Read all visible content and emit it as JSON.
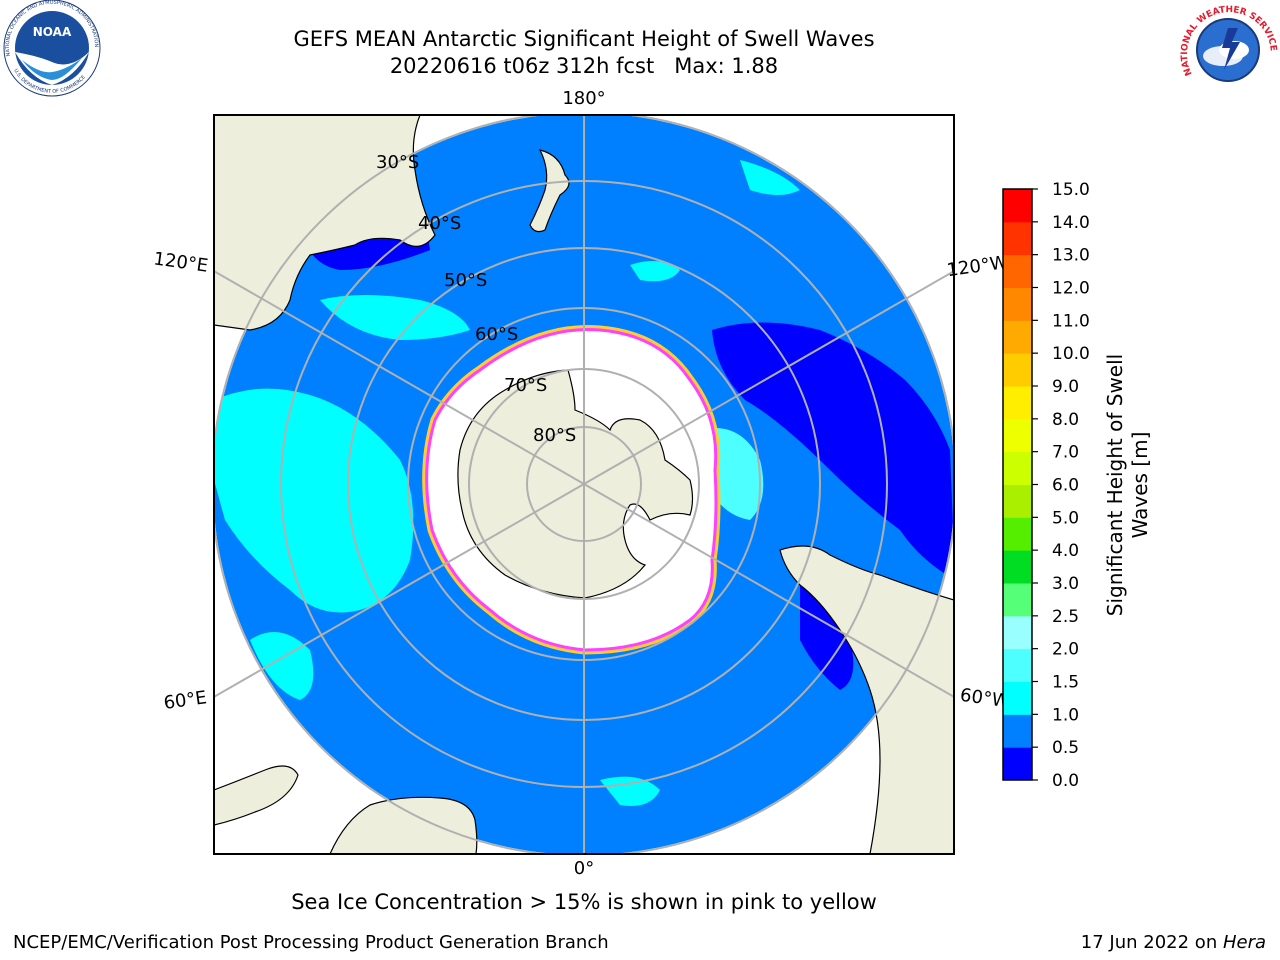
{
  "title": {
    "line1": "GEFS MEAN Antarctic Significant Height of Swell Waves",
    "line2": "20220616 t06z 312h fcst   Max: 1.88"
  },
  "logos": {
    "noaa_text": "NOAA",
    "noaa_ring_text": "NATIONAL OCEANIC AND ATMOSPHERIC ADMINISTRATION",
    "noaa_ring_text_bottom": "U.S. DEPARTMENT OF COMMERCE",
    "nws_ring_text": "NATIONAL WEATHER SERVICE"
  },
  "map": {
    "projection": "south-polar-stereographic",
    "longitude_labels": {
      "top": "180°",
      "bottom": "0°",
      "left_upper": "120°E",
      "right_upper": "120°W",
      "left_lower": "60°E",
      "right_lower": "60°W"
    },
    "latitude_labels": [
      "30°S",
      "40°S",
      "50°S",
      "60°S",
      "70°S",
      "80°S"
    ],
    "colors": {
      "ocean": "#0080ff",
      "land": "#eeeedc",
      "ice": "#ffffff",
      "calm": "#0000ff",
      "swell_light": "#00ffff",
      "swell_pale": "#4dffff",
      "grid": "#b0b0b0",
      "ice_edge_pink": "#ff40ff",
      "ice_edge_yellow": "#ffcc33"
    }
  },
  "colorbar": {
    "label": "Significant Height of Swell Waves [m]",
    "ticks": [
      "0.0",
      "0.5",
      "1.0",
      "1.5",
      "2.0",
      "2.5",
      "3.0",
      "4.0",
      "5.0",
      "6.0",
      "7.0",
      "8.0",
      "9.0",
      "10.0",
      "11.0",
      "12.0",
      "13.0",
      "14.0",
      "15.0"
    ],
    "colors": [
      "#0000ff",
      "#0080ff",
      "#00ffff",
      "#4dffff",
      "#99ffff",
      "#55ff77",
      "#00dd22",
      "#55ee00",
      "#aaee00",
      "#ccff00",
      "#eeff00",
      "#ffee00",
      "#ffcc00",
      "#ffaa00",
      "#ff8800",
      "#ff6600",
      "#ff3300",
      "#ff0000"
    ]
  },
  "caption": "Sea Ice Concentration > 15% is shown in pink to yellow",
  "footer": {
    "left": "NCEP/EMC/Verification Post Processing Product Generation Branch",
    "right_prefix": "17 Jun 2022 on ",
    "right_machine": "Hera"
  }
}
